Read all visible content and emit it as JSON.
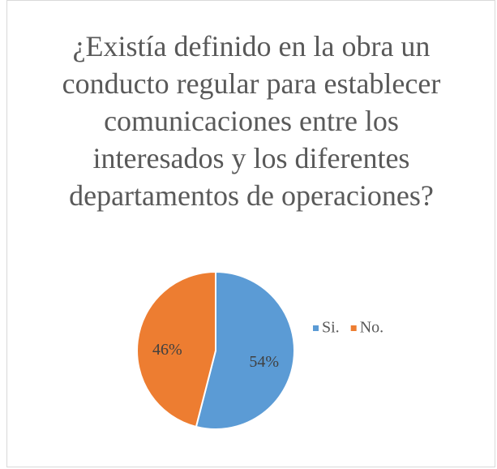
{
  "chart_data": {
    "type": "pie",
    "title": "¿Existía definido en la obra un conducto regular para establecer comunicaciones entre los interesados y los diferentes departamentos de operaciones?",
    "categories": [
      "Si.",
      "No."
    ],
    "values": [
      54,
      46
    ],
    "value_labels": [
      "54%",
      "46%"
    ],
    "colors": [
      "#5b9bd5",
      "#ed7d31"
    ],
    "legend": "right"
  }
}
